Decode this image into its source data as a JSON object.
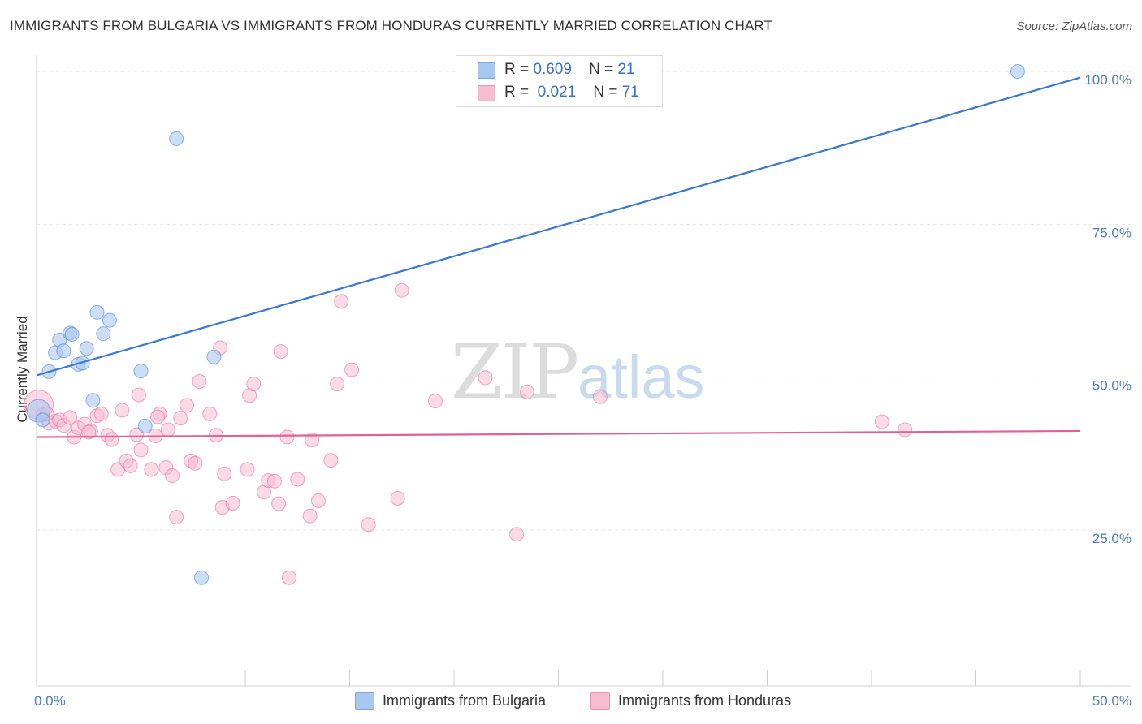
{
  "header": {
    "title": "IMMIGRANTS FROM BULGARIA VS IMMIGRANTS FROM HONDURAS CURRENTLY MARRIED CORRELATION CHART",
    "source": "Source: ZipAtlas.com"
  },
  "watermark": {
    "zip": "ZIP",
    "atlas": "atlas"
  },
  "legend": {
    "rows": [
      {
        "r_label": "R =",
        "r_value": "0.609",
        "n_label": "N =",
        "n_value": "21",
        "color": "#a9c8f0"
      },
      {
        "r_label": "R =",
        "r_value": "0.021",
        "n_label": "N =",
        "n_value": "71",
        "color": "#f6bcd0"
      }
    ]
  },
  "bottom_legend": {
    "series1": "Immigrants from Bulgaria",
    "series2": "Immigrants from Honduras"
  },
  "colors": {
    "bulgaria_fill": "#a9c8f0",
    "bulgaria_line": "#3a78d0",
    "honduras_fill": "#f6bcd0",
    "honduras_line": "#e0609a",
    "tick_text": "#4a7cc7",
    "grid": "#e3e3e3"
  },
  "chart_data": {
    "type": "scatter",
    "title": "IMMIGRANTS FROM BULGARIA VS IMMIGRANTS FROM HONDURAS CURRENTLY MARRIED CORRELATION CHART",
    "xlabel": "",
    "ylabel": "Currently Married",
    "xlim": [
      0,
      50
    ],
    "ylim": [
      0,
      105
    ],
    "x_tick_labels": [
      "0.0%",
      "50.0%"
    ],
    "y_ticks": [
      25,
      50,
      75,
      100
    ],
    "y_tick_labels": [
      "25.0%",
      "50.0%",
      "75.0%",
      "100.0%"
    ],
    "grid": true,
    "legend_position": "top-center",
    "series": [
      {
        "name": "Immigrants from Bulgaria",
        "r": 0.609,
        "n": 21,
        "points": [
          [
            0.1,
            44.5
          ],
          [
            0.6,
            50.9
          ],
          [
            0.9,
            54.0
          ],
          [
            1.1,
            56.1
          ],
          [
            1.3,
            54.3
          ],
          [
            1.6,
            57.2
          ],
          [
            1.7,
            57.0
          ],
          [
            2.0,
            52.1
          ],
          [
            2.2,
            52.3
          ],
          [
            2.4,
            54.7
          ],
          [
            2.7,
            46.2
          ],
          [
            2.9,
            60.6
          ],
          [
            3.2,
            57.1
          ],
          [
            3.5,
            59.3
          ],
          [
            5.0,
            51.0
          ],
          [
            5.2,
            42.0
          ],
          [
            6.7,
            89.0
          ],
          [
            7.9,
            17.2
          ],
          [
            8.5,
            53.3
          ],
          [
            0.3,
            43.0
          ],
          [
            47.0,
            100.0
          ]
        ],
        "trend": [
          [
            0,
            50.3
          ],
          [
            50,
            99.0
          ]
        ]
      },
      {
        "name": "Immigrants from Honduras",
        "r": 0.021,
        "n": 71,
        "points": [
          [
            0.1,
            45.5
          ],
          [
            0.3,
            43.8
          ],
          [
            0.6,
            42.5
          ],
          [
            0.9,
            42.8
          ],
          [
            1.1,
            43.0
          ],
          [
            1.3,
            42.1
          ],
          [
            1.6,
            43.4
          ],
          [
            1.8,
            40.2
          ],
          [
            2.0,
            41.7
          ],
          [
            2.3,
            42.3
          ],
          [
            2.6,
            41.2
          ],
          [
            2.9,
            43.7
          ],
          [
            3.1,
            44.0
          ],
          [
            3.4,
            40.5
          ],
          [
            3.6,
            39.8
          ],
          [
            3.9,
            34.9
          ],
          [
            4.1,
            44.6
          ],
          [
            4.3,
            36.3
          ],
          [
            4.5,
            35.5
          ],
          [
            4.8,
            40.6
          ],
          [
            4.9,
            47.1
          ],
          [
            5.0,
            38.1
          ],
          [
            5.5,
            34.9
          ],
          [
            5.7,
            40.4
          ],
          [
            5.9,
            44.0
          ],
          [
            6.2,
            35.2
          ],
          [
            6.3,
            41.4
          ],
          [
            6.5,
            33.9
          ],
          [
            6.7,
            27.1
          ],
          [
            6.9,
            43.3
          ],
          [
            7.2,
            45.4
          ],
          [
            7.4,
            36.3
          ],
          [
            7.6,
            35.9
          ],
          [
            7.8,
            49.3
          ],
          [
            8.3,
            44.0
          ],
          [
            8.6,
            40.5
          ],
          [
            8.9,
            28.7
          ],
          [
            9.0,
            34.2
          ],
          [
            9.4,
            29.4
          ],
          [
            8.8,
            54.8
          ],
          [
            10.1,
            34.9
          ],
          [
            10.2,
            47.0
          ],
          [
            10.4,
            48.9
          ],
          [
            10.9,
            31.2
          ],
          [
            11.1,
            33.1
          ],
          [
            11.6,
            29.3
          ],
          [
            11.7,
            54.2
          ],
          [
            12.0,
            40.2
          ],
          [
            12.1,
            17.2
          ],
          [
            12.5,
            33.3
          ],
          [
            13.1,
            27.3
          ],
          [
            13.2,
            39.7
          ],
          [
            13.5,
            29.8
          ],
          [
            14.1,
            36.4
          ],
          [
            14.4,
            48.9
          ],
          [
            14.6,
            62.4
          ],
          [
            15.1,
            51.2
          ],
          [
            15.9,
            25.9
          ],
          [
            17.3,
            30.2
          ],
          [
            17.5,
            64.2
          ],
          [
            19.1,
            46.1
          ],
          [
            21.5,
            49.9
          ],
          [
            23.0,
            24.3
          ],
          [
            23.5,
            47.6
          ],
          [
            27.0,
            46.8
          ],
          [
            40.5,
            42.7
          ],
          [
            41.6,
            41.4
          ],
          [
            2.5,
            41.0
          ],
          [
            5.8,
            43.5
          ],
          [
            11.4,
            33.0
          ],
          [
            0.5,
            44.0
          ]
        ],
        "trend": [
          [
            0,
            40.2
          ],
          [
            50,
            41.2
          ]
        ]
      }
    ]
  }
}
